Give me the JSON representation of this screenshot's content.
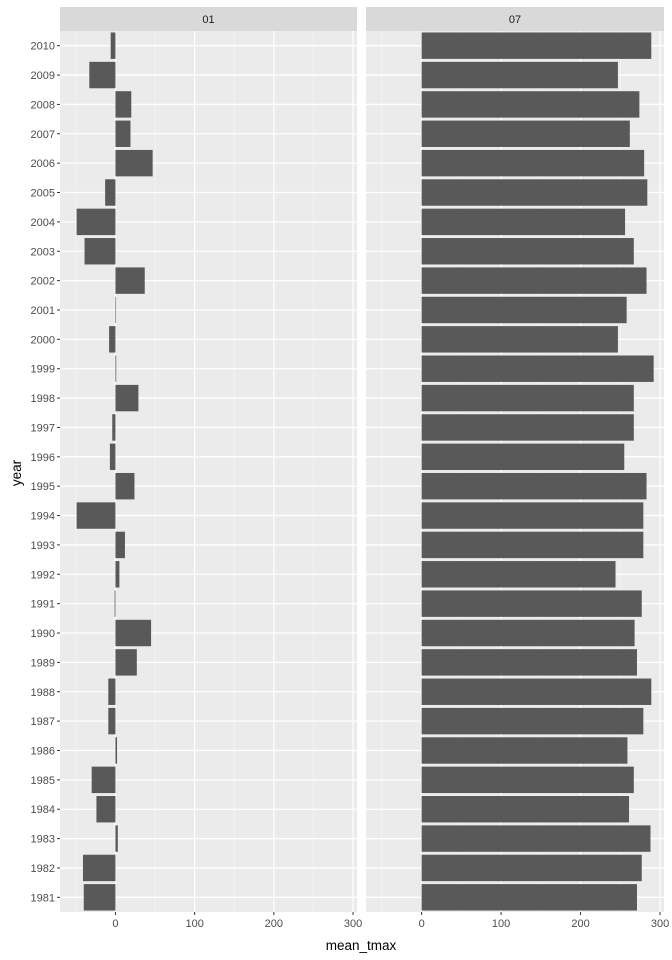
{
  "chart_data": {
    "type": "bar",
    "orientation": "horizontal",
    "facet_by": "month",
    "xlabel": "mean_tmax",
    "ylabel": "year",
    "xlim": [
      -70,
      305
    ],
    "x_ticks": [
      0,
      100,
      200,
      300
    ],
    "grid": true,
    "categories": [
      "1981",
      "1982",
      "1983",
      "1984",
      "1985",
      "1986",
      "1987",
      "1988",
      "1989",
      "1990",
      "1991",
      "1992",
      "1993",
      "1994",
      "1995",
      "1996",
      "1997",
      "1998",
      "1999",
      "2000",
      "2001",
      "2002",
      "2003",
      "2004",
      "2005",
      "2006",
      "2007",
      "2008",
      "2009",
      "2010"
    ],
    "series": [
      {
        "name": "01",
        "values": [
          -40,
          -41,
          3,
          -24,
          -30,
          2,
          -9,
          -9,
          27,
          45,
          -1,
          5,
          12,
          -49,
          24,
          -7,
          -4,
          29,
          1,
          -8,
          0,
          37,
          -39,
          -49,
          -13,
          47,
          19,
          20,
          -33,
          -6
        ]
      },
      {
        "name": "07",
        "values": [
          271,
          277,
          288,
          261,
          267,
          259,
          279,
          289,
          271,
          268,
          277,
          244,
          279,
          279,
          283,
          255,
          267,
          267,
          292,
          247,
          258,
          283,
          267,
          256,
          284,
          280,
          262,
          274,
          247,
          289
        ]
      }
    ]
  },
  "colors": {
    "panel_background": "#ebebeb",
    "strip_background": "#d9d9d9",
    "grid_major": "#ffffff",
    "grid_minor": "#f4f4f4",
    "bar_fill": "#595959",
    "tick_text": "#4d4d4d",
    "axis_title": "#000000"
  }
}
